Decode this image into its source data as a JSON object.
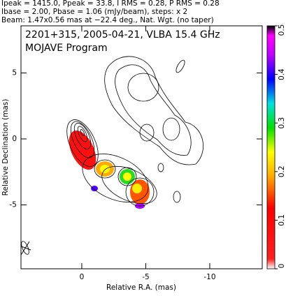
{
  "chart_data": {
    "type": "contour_map",
    "header": [
      "Ipeak = 1415.0, Ppeak = 33.8, I RMS = 0.28, P RMS = 0.28",
      "Ibase = 2.00, Pbase = 1.06 (mJy/beam), steps: x 2",
      "Beam: 1.47x0.56 mas at −22.4 deg., Nat. Wgt. (no taper)"
    ],
    "title": "2201+315, 2005-04-21, VLBA 15.4 GHz",
    "subtitle": "MOJAVE Program",
    "x_label": "Relative R.A. (mas)",
    "y_label": "Relative Declination (mas)",
    "xlim": [
      4.75,
      -14.1
    ],
    "xticks": [
      0,
      -5,
      -10
    ],
    "ylim": [
      -9.84,
      8.57
    ],
    "yticks": [
      -5,
      0,
      5
    ],
    "colorbar_lim": [
      0,
      0.5
    ],
    "colorbar_ticks": [
      0,
      0.1,
      0.2,
      0.3,
      0.4,
      0.5
    ]
  }
}
